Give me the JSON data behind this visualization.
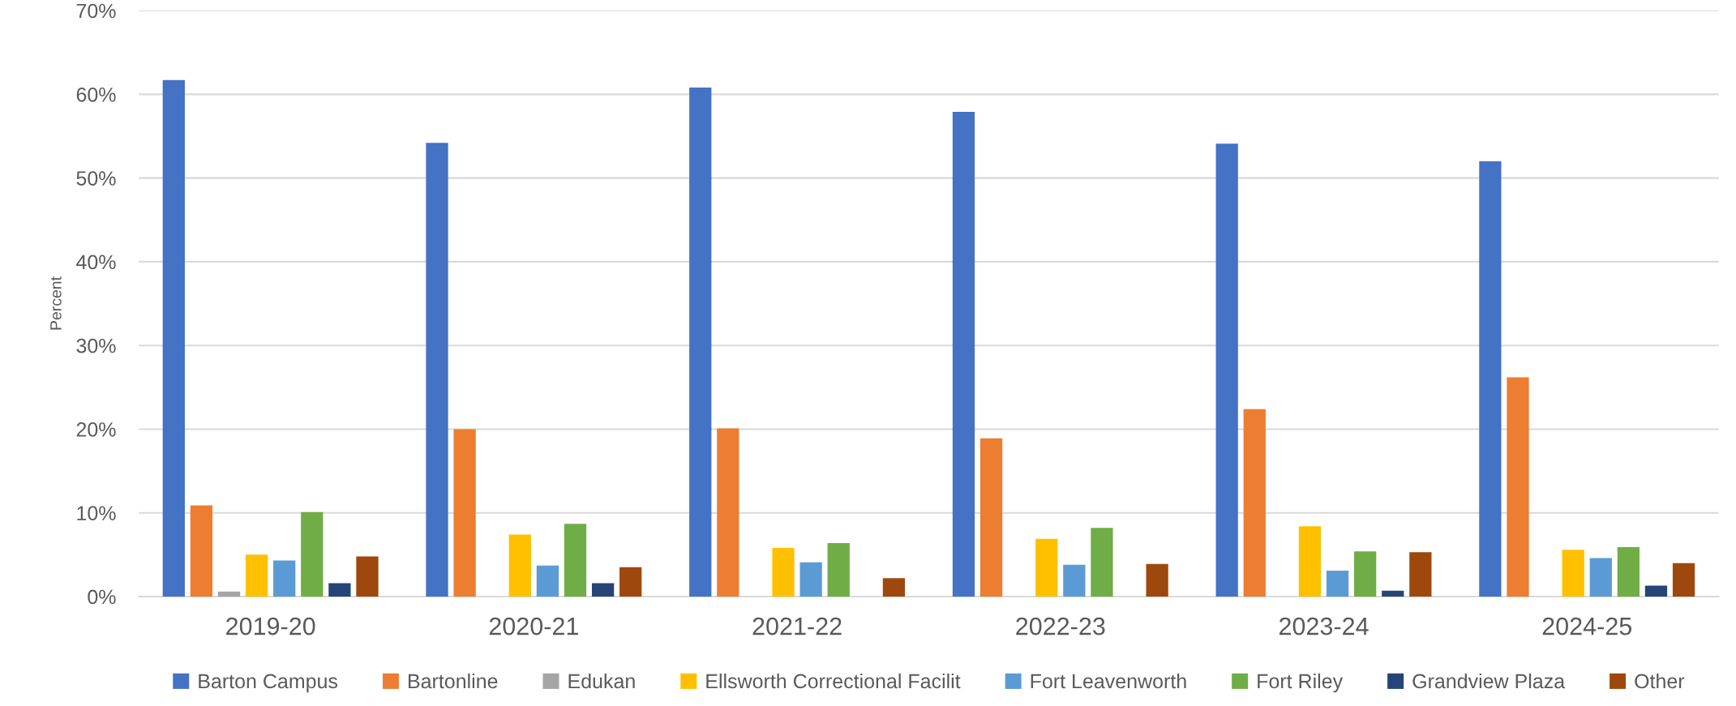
{
  "chart_data": {
    "type": "bar",
    "ylabel": "Percent",
    "categories": [
      "2019-20",
      "2020-21",
      "2021-22",
      "2022-23",
      "2023-24",
      "2024-25"
    ],
    "series": [
      {
        "name": "Barton Campus",
        "color": "#4472c4",
        "values": [
          61.7,
          54.2,
          60.8,
          57.9,
          54.1,
          52.0
        ]
      },
      {
        "name": "Bartonline",
        "color": "#ed7d31",
        "values": [
          10.9,
          20.0,
          20.1,
          18.9,
          22.4,
          26.2
        ]
      },
      {
        "name": "Edukan",
        "color": "#a5a5a5",
        "values": [
          0.6,
          null,
          null,
          null,
          null,
          null
        ]
      },
      {
        "name": "Ellsworth Correctional Facilit",
        "color": "#ffc000",
        "values": [
          5.0,
          7.4,
          5.8,
          6.9,
          8.4,
          5.6
        ]
      },
      {
        "name": "Fort Leavenworth",
        "color": "#5b9bd5",
        "values": [
          4.3,
          3.7,
          4.1,
          3.8,
          3.1,
          4.6
        ]
      },
      {
        "name": "Fort Riley",
        "color": "#70ad47",
        "values": [
          10.1,
          8.7,
          6.4,
          8.2,
          5.4,
          5.9
        ]
      },
      {
        "name": "Grandview Plaza",
        "color": "#264478",
        "values": [
          1.6,
          1.6,
          null,
          null,
          0.7,
          1.3
        ]
      },
      {
        "name": "Other",
        "color": "#9e480e",
        "values": [
          4.8,
          3.5,
          2.2,
          3.9,
          5.3,
          4.0
        ]
      }
    ],
    "ylim": [
      0,
      70
    ],
    "yticks": [
      {
        "value": 0,
        "label": "0%"
      },
      {
        "value": 10,
        "label": "10%"
      },
      {
        "value": 20,
        "label": "20%"
      },
      {
        "value": 30,
        "label": "30%"
      },
      {
        "value": 40,
        "label": "40%"
      },
      {
        "value": 50,
        "label": "50%"
      },
      {
        "value": 60,
        "label": "60%"
      },
      {
        "value": 70,
        "label": "70%"
      }
    ],
    "grid": "y",
    "legend": "bottom"
  }
}
